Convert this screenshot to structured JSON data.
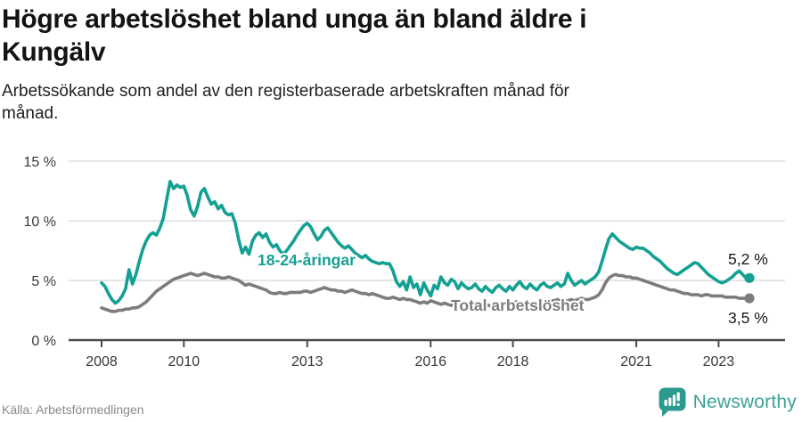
{
  "header": {
    "title": "Högre arbetslöshet bland unga än bland äldre i\nKungälv",
    "subtitle": "Arbetssökande som andel av den registerbaserade arbetskraften månad för\nmånad."
  },
  "colors": {
    "accent": "#14A193",
    "gray": "#7D7D7D",
    "grid": "#DDDDDD",
    "axis": "#4A4A4A",
    "tick_text": "#383838",
    "value_text": "#191919",
    "brand_teal": "#2C9A8E"
  },
  "chart_data": {
    "type": "line",
    "unit": "%",
    "frequency": "monthly",
    "x_start": "2008-01",
    "x_end": "2023-10",
    "ylim": [
      0,
      15
    ],
    "grid": "horizontal",
    "yticks": [
      {
        "value": 0,
        "label": "0 %"
      },
      {
        "value": 5,
        "label": "5 %"
      },
      {
        "value": 10,
        "label": "10 %"
      },
      {
        "value": 15,
        "label": "15 %"
      }
    ],
    "xticks": [
      {
        "year": 2008,
        "label": "2008"
      },
      {
        "year": 2010,
        "label": "2010"
      },
      {
        "year": 2013,
        "label": "2013"
      },
      {
        "year": 2016,
        "label": "2016"
      },
      {
        "year": 2018,
        "label": "2018"
      },
      {
        "year": 2021,
        "label": "2021"
      },
      {
        "year": 2023,
        "label": "2023"
      }
    ],
    "series": [
      {
        "name": "18-24-åringar",
        "label_text": "18-24-åringar",
        "end_label": "5,2 %",
        "end_value": 5.2,
        "color": "#14A193",
        "values": [
          4.8,
          4.5,
          3.9,
          3.4,
          3.1,
          3.3,
          3.7,
          4.3,
          5.9,
          4.7,
          5.5,
          6.6,
          7.6,
          8.3,
          8.8,
          9.0,
          8.8,
          9.4,
          10.2,
          11.8,
          13.3,
          12.7,
          13.0,
          12.8,
          12.9,
          12.1,
          10.9,
          10.4,
          11.2,
          12.4,
          12.7,
          12.0,
          11.4,
          11.6,
          11.0,
          11.3,
          10.7,
          10.5,
          10.6,
          9.8,
          8.4,
          7.3,
          7.8,
          7.2,
          8.3,
          8.8,
          9.0,
          8.6,
          8.9,
          8.2,
          7.8,
          8.0,
          7.5,
          7.2,
          7.5,
          7.9,
          8.3,
          8.8,
          9.2,
          9.6,
          9.8,
          9.5,
          8.9,
          8.4,
          8.7,
          9.2,
          9.4,
          9.0,
          8.6,
          8.2,
          7.9,
          7.7,
          7.9,
          7.6,
          7.3,
          7.1,
          6.9,
          7.1,
          6.8,
          6.6,
          6.5,
          6.4,
          6.5,
          6.4,
          6.4,
          5.8,
          4.9,
          4.5,
          4.9,
          4.2,
          5.3,
          4.4,
          4.7,
          3.8,
          4.8,
          4.2,
          3.7,
          4.6,
          4.3,
          5.3,
          4.8,
          4.6,
          5.1,
          4.9,
          4.3,
          4.8,
          4.5,
          4.3,
          4.4,
          4.7,
          4.3,
          4.1,
          4.5,
          4.2,
          4.0,
          4.4,
          4.6,
          4.3,
          4.1,
          4.5,
          4.2,
          4.6,
          4.9,
          4.5,
          4.3,
          4.7,
          4.4,
          4.2,
          4.6,
          4.8,
          4.5,
          4.4,
          4.6,
          4.8,
          4.5,
          4.7,
          5.6,
          5.0,
          4.6,
          4.8,
          5.0,
          4.7,
          4.9,
          5.1,
          5.3,
          5.7,
          6.6,
          7.6,
          8.5,
          8.9,
          8.6,
          8.3,
          8.1,
          7.9,
          7.7,
          7.6,
          7.8,
          7.7,
          7.7,
          7.5,
          7.3,
          7.0,
          6.8,
          6.6,
          6.3,
          6.0,
          5.8,
          5.6,
          5.5,
          5.7,
          5.9,
          6.1,
          6.3,
          6.5,
          6.4,
          6.1,
          5.8,
          5.5,
          5.3,
          5.1,
          4.9,
          4.8,
          4.9,
          5.1,
          5.3,
          5.6,
          5.8,
          5.5,
          5.2,
          5.2
        ]
      },
      {
        "name": "Total arbetslöshet",
        "label_text": "Total arbetslöshet",
        "end_label": "3,5 %",
        "end_value": 3.5,
        "color": "#7D7D7D",
        "values": [
          2.7,
          2.6,
          2.5,
          2.4,
          2.4,
          2.5,
          2.5,
          2.6,
          2.6,
          2.7,
          2.7,
          2.8,
          3.0,
          3.2,
          3.5,
          3.8,
          4.1,
          4.3,
          4.5,
          4.7,
          4.9,
          5.1,
          5.2,
          5.3,
          5.4,
          5.5,
          5.6,
          5.5,
          5.4,
          5.5,
          5.6,
          5.5,
          5.4,
          5.3,
          5.3,
          5.2,
          5.2,
          5.3,
          5.2,
          5.1,
          5.0,
          4.8,
          4.6,
          4.7,
          4.6,
          4.5,
          4.4,
          4.3,
          4.2,
          4.0,
          3.9,
          3.9,
          4.0,
          3.9,
          3.9,
          4.0,
          4.0,
          4.0,
          4.0,
          4.1,
          4.1,
          4.0,
          4.1,
          4.2,
          4.3,
          4.4,
          4.3,
          4.2,
          4.2,
          4.1,
          4.1,
          4.0,
          4.1,
          4.2,
          4.1,
          4.0,
          3.9,
          3.9,
          3.8,
          3.9,
          3.8,
          3.7,
          3.6,
          3.5,
          3.5,
          3.6,
          3.5,
          3.4,
          3.5,
          3.4,
          3.4,
          3.3,
          3.2,
          3.1,
          3.2,
          3.1,
          3.3,
          3.2,
          3.1,
          3.0,
          3.1,
          3.0,
          2.9,
          3.0,
          3.1,
          3.0,
          2.9,
          2.9,
          3.0,
          3.0,
          2.9,
          2.9,
          3.0,
          2.9,
          2.8,
          2.9,
          3.0,
          2.9,
          2.9,
          3.0,
          3.1,
          3.2,
          3.1,
          3.0,
          3.0,
          3.1,
          3.0,
          3.1,
          3.2,
          3.1,
          3.2,
          3.3,
          3.3,
          3.4,
          3.3,
          3.2,
          3.3,
          3.4,
          3.3,
          3.4,
          3.5,
          3.4,
          3.4,
          3.5,
          3.6,
          3.8,
          4.2,
          4.8,
          5.2,
          5.4,
          5.5,
          5.4,
          5.4,
          5.3,
          5.3,
          5.2,
          5.2,
          5.1,
          5.0,
          4.9,
          4.8,
          4.7,
          4.6,
          4.5,
          4.4,
          4.3,
          4.2,
          4.2,
          4.1,
          4.0,
          3.9,
          3.9,
          3.8,
          3.8,
          3.8,
          3.7,
          3.8,
          3.8,
          3.7,
          3.7,
          3.7,
          3.7,
          3.6,
          3.6,
          3.6,
          3.6,
          3.5,
          3.5,
          3.5,
          3.5
        ]
      }
    ]
  },
  "footer": {
    "source": "Källa: Arbetsförmedlingen",
    "brand": "Newsworthy"
  }
}
